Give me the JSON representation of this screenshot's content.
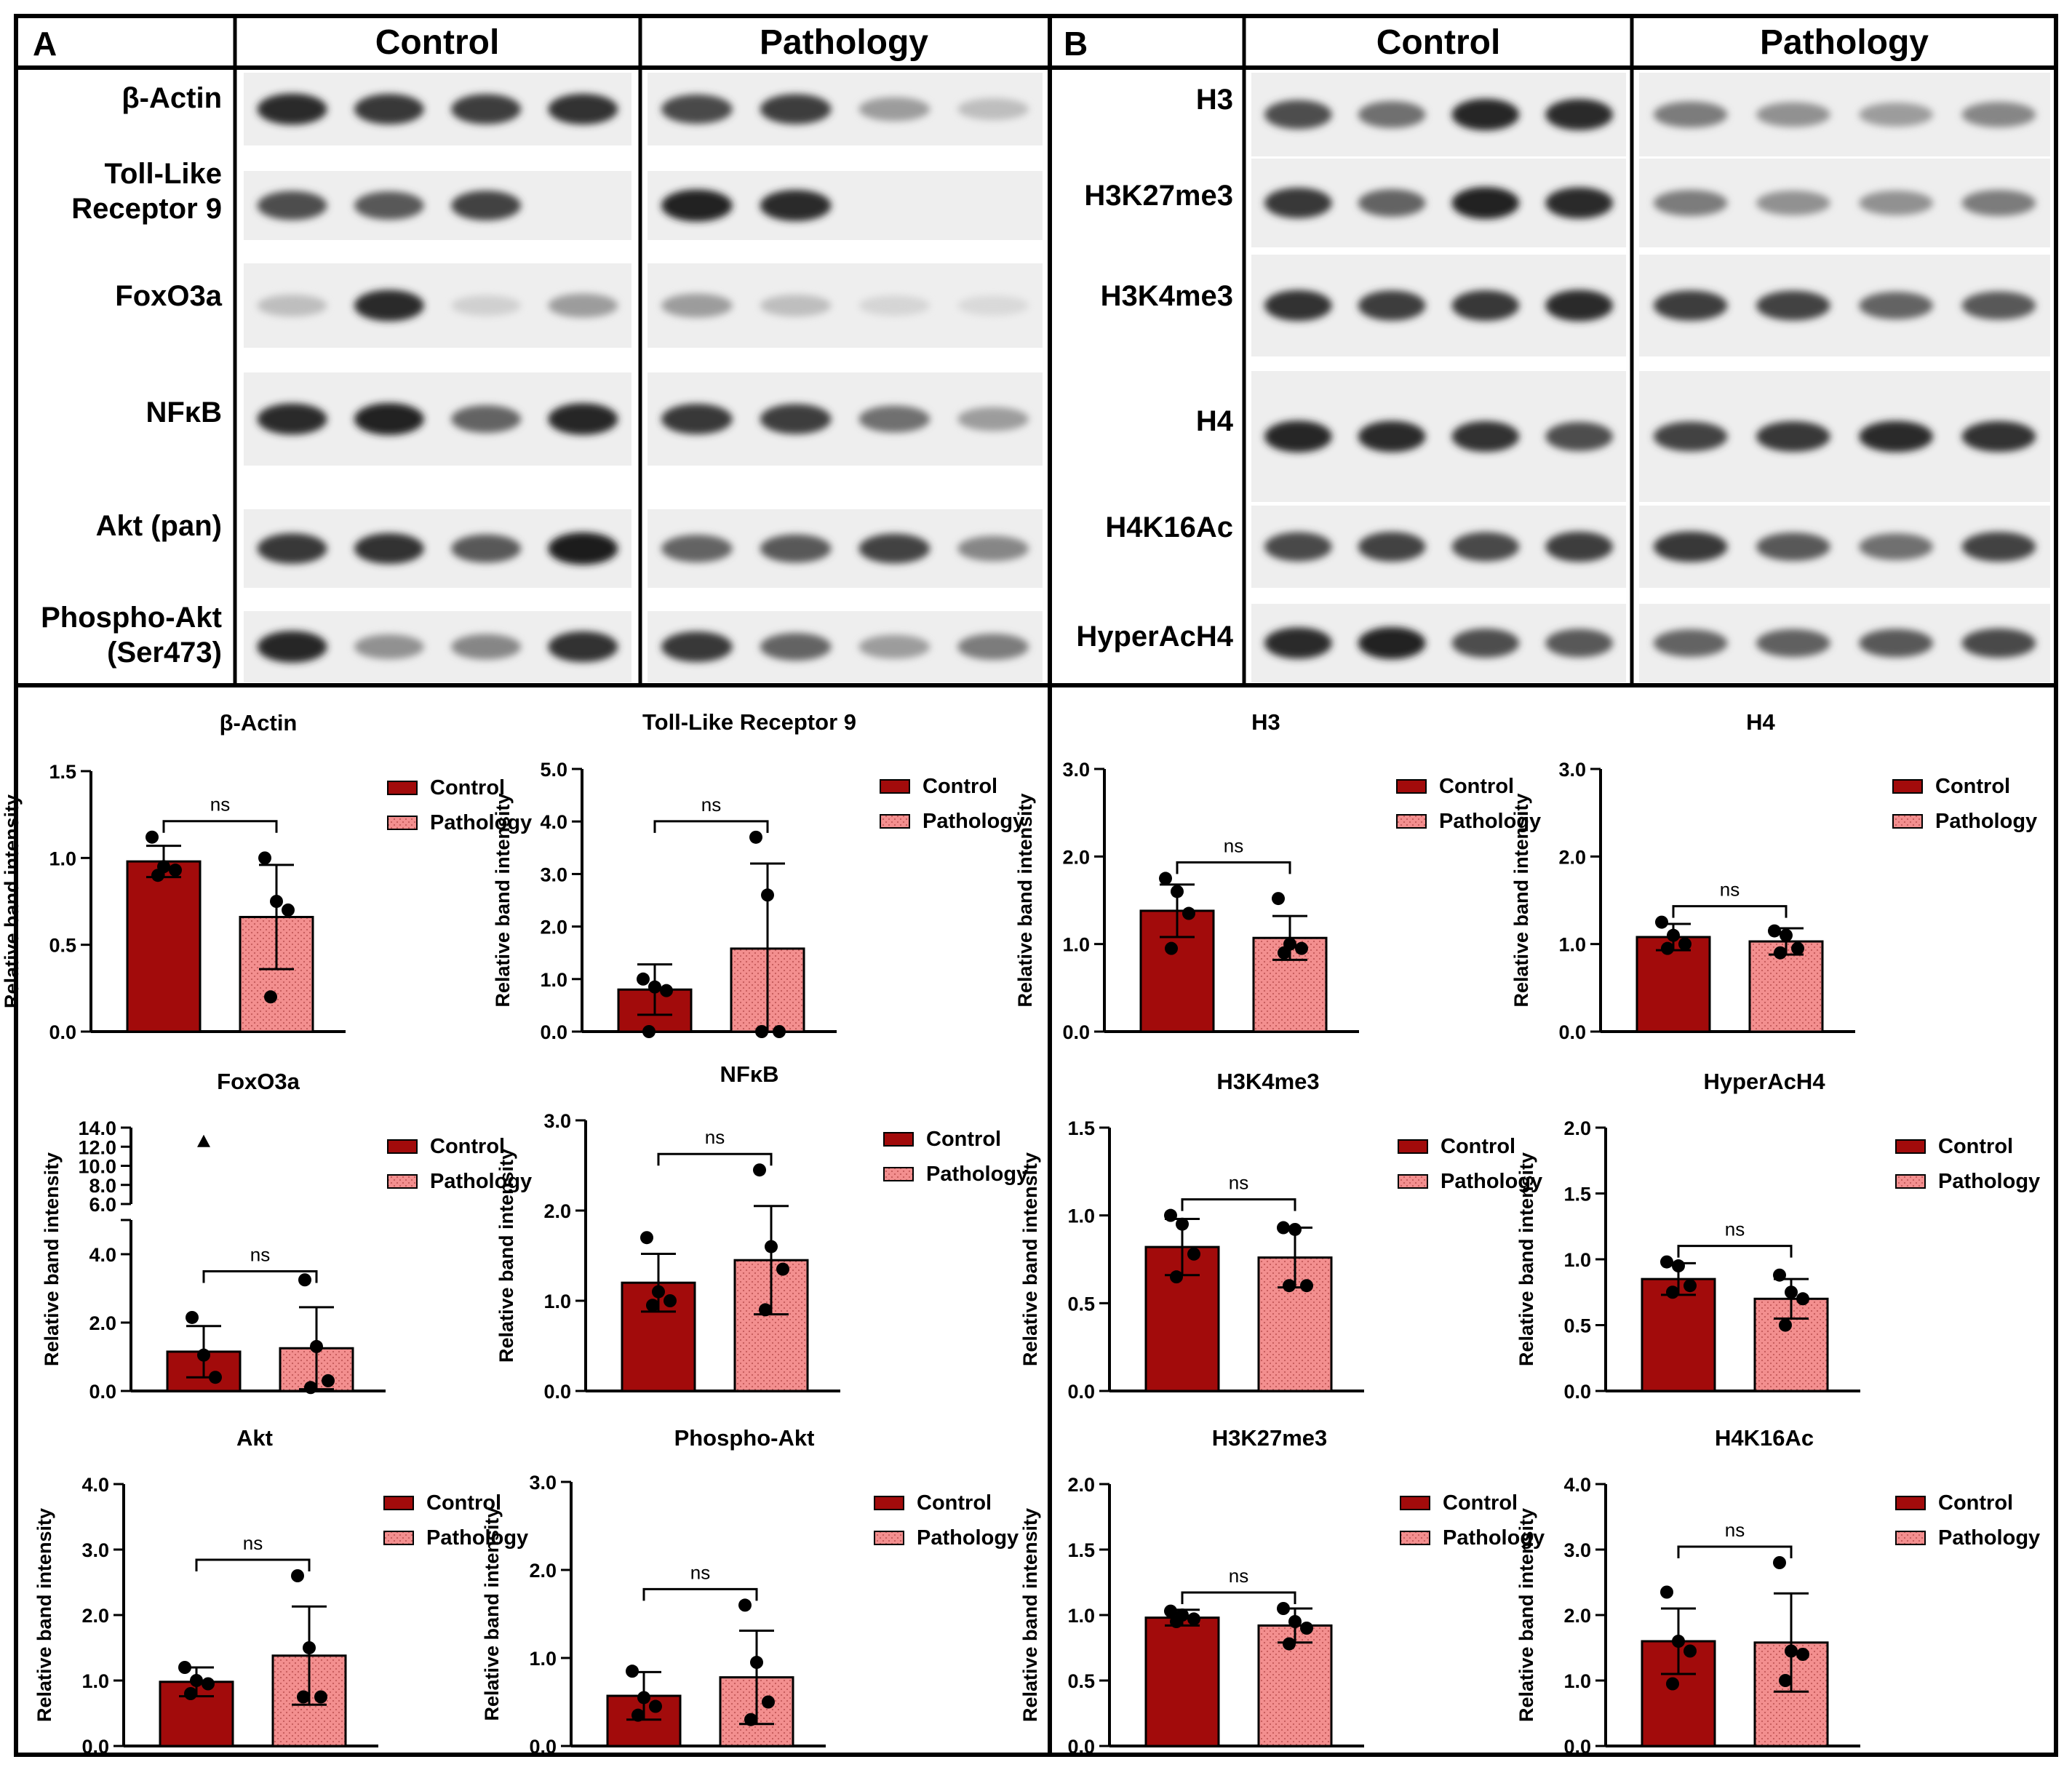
{
  "figure": {
    "panel_a": {
      "letter": "A",
      "col_control": "Control",
      "col_pathology": "Pathology",
      "blots": [
        {
          "label": [
            "β-Actin"
          ],
          "control_bands": [
            0.85,
            0.8,
            0.78,
            0.82
          ],
          "pathology_bands": [
            0.72,
            0.78,
            0.35,
            0.2
          ]
        },
        {
          "label": [
            "Toll-Like",
            "Receptor 9"
          ],
          "control_bands": [
            0.7,
            0.65,
            0.75,
            0
          ],
          "pathology_bands": [
            0.9,
            0.85,
            0,
            0
          ]
        },
        {
          "label": [
            "FoxO3a"
          ],
          "control_bands": [
            0.2,
            0.85,
            0.12,
            0.35
          ],
          "pathology_bands": [
            0.35,
            0.2,
            0.1,
            0.08
          ]
        },
        {
          "label": [
            "NFκB"
          ],
          "control_bands": [
            0.85,
            0.9,
            0.6,
            0.88
          ],
          "pathology_bands": [
            0.8,
            0.78,
            0.55,
            0.35
          ]
        },
        {
          "label": [
            "Akt (pan)"
          ],
          "control_bands": [
            0.8,
            0.82,
            0.65,
            0.92
          ],
          "pathology_bands": [
            0.6,
            0.65,
            0.75,
            0.45
          ]
        },
        {
          "label": [
            "Phospho-Akt",
            "(Ser473)"
          ],
          "control_bands": [
            0.88,
            0.4,
            0.45,
            0.82
          ],
          "pathology_bands": [
            0.8,
            0.6,
            0.35,
            0.5
          ]
        }
      ]
    },
    "panel_b": {
      "letter": "B",
      "col_control": "Control",
      "col_pathology": "Pathology",
      "blots": [
        {
          "label": [
            "H3"
          ],
          "control_bands": [
            0.7,
            0.55,
            0.88,
            0.85
          ],
          "pathology_bands": [
            0.5,
            0.4,
            0.35,
            0.45
          ]
        },
        {
          "label": [
            "H3K27me3"
          ],
          "control_bands": [
            0.8,
            0.6,
            0.9,
            0.85
          ],
          "pathology_bands": [
            0.5,
            0.4,
            0.4,
            0.5
          ]
        },
        {
          "label": [
            "H3K4me3"
          ],
          "control_bands": [
            0.82,
            0.78,
            0.8,
            0.85
          ],
          "pathology_bands": [
            0.78,
            0.75,
            0.6,
            0.65
          ]
        },
        {
          "label": [
            "H4"
          ],
          "control_bands": [
            0.88,
            0.85,
            0.82,
            0.7
          ],
          "pathology_bands": [
            0.75,
            0.8,
            0.85,
            0.82
          ]
        },
        {
          "label": [
            "H4K16Ac"
          ],
          "control_bands": [
            0.72,
            0.75,
            0.72,
            0.78
          ],
          "pathology_bands": [
            0.8,
            0.65,
            0.55,
            0.75
          ]
        },
        {
          "label": [
            "HyperAcH4"
          ],
          "control_bands": [
            0.85,
            0.9,
            0.7,
            0.65
          ],
          "pathology_bands": [
            0.6,
            0.62,
            0.65,
            0.72
          ]
        }
      ]
    }
  },
  "chart_data": [
    {
      "type": "bar",
      "title": "β-Actin",
      "ylabel": "Relative band intensity",
      "ylim": [
        0,
        1.5
      ],
      "yticks": [
        "0.0",
        "0.5",
        "1.0",
        "1.5"
      ],
      "tick_values": [
        0,
        0.5,
        1.0,
        1.5
      ],
      "categories": [
        "Control",
        "Pathology"
      ],
      "series": [
        {
          "name": "Control",
          "mean": 0.98,
          "sd": 0.09,
          "points": [
            1.12,
            0.95,
            0.93,
            0.9
          ]
        },
        {
          "name": "Pathology",
          "mean": 0.66,
          "sd": 0.3,
          "points": [
            1.0,
            0.75,
            0.7,
            0.2
          ]
        }
      ],
      "significance": "ns",
      "legend": [
        "Control",
        "Pathology"
      ],
      "legend_position": "top-right"
    },
    {
      "type": "bar",
      "title": "Toll-Like Receptor 9",
      "ylabel": "Relative band intensity",
      "ylim": [
        0,
        5.0
      ],
      "yticks": [
        "0.0",
        "1.0",
        "2.0",
        "3.0",
        "4.0",
        "5.0"
      ],
      "tick_values": [
        0,
        1,
        2,
        3,
        4,
        5
      ],
      "categories": [
        "Control",
        "Pathology"
      ],
      "series": [
        {
          "name": "Control",
          "mean": 0.8,
          "sd": 0.48,
          "points": [
            1.0,
            0.85,
            0.78,
            0.0
          ]
        },
        {
          "name": "Pathology",
          "mean": 1.58,
          "sd": 1.62,
          "points": [
            3.7,
            2.6,
            0.0,
            0.0
          ]
        }
      ],
      "significance": "ns",
      "legend": [
        "Control",
        "Pathology"
      ],
      "legend_position": "top-right"
    },
    {
      "type": "bar",
      "title": "FoxO3a",
      "ylabel": "Relative band intensity",
      "ylim": [
        0,
        14.0
      ],
      "y_axis_break": [
        5,
        6
      ],
      "yticks": [
        "0.0",
        "2.0",
        "4.0",
        "6.0",
        "8.0",
        "10.0",
        "12.0",
        "14.0"
      ],
      "tick_values": [
        0,
        2,
        4,
        6,
        8,
        10,
        12,
        14
      ],
      "categories": [
        "Control",
        "Pathology"
      ],
      "series": [
        {
          "name": "Control",
          "mean": 1.15,
          "sd": 0.75,
          "points": [
            2.15,
            1.05,
            0.4
          ]
        },
        {
          "name": "Pathology",
          "mean": 1.25,
          "sd": 1.2,
          "points": [
            3.25,
            1.3,
            0.3,
            0.1
          ]
        }
      ],
      "outlier": {
        "series": "Control",
        "value": 12.5,
        "marker": "triangle"
      },
      "significance": "ns",
      "legend": [
        "Control",
        "Pathology"
      ],
      "legend_position": "top-right"
    },
    {
      "type": "bar",
      "title": "NFκB",
      "ylabel": "Relative band intensity",
      "ylim": [
        0,
        3.0
      ],
      "yticks": [
        "0.0",
        "1.0",
        "2.0",
        "3.0"
      ],
      "tick_values": [
        0,
        1,
        2,
        3
      ],
      "categories": [
        "Control",
        "Pathology"
      ],
      "series": [
        {
          "name": "Control",
          "mean": 1.2,
          "sd": 0.32,
          "points": [
            1.7,
            1.1,
            1.0,
            0.95
          ]
        },
        {
          "name": "Pathology",
          "mean": 1.45,
          "sd": 0.6,
          "points": [
            2.45,
            1.6,
            1.35,
            0.9
          ]
        }
      ],
      "significance": "ns",
      "legend": [
        "Control",
        "Pathology"
      ],
      "legend_position": "top-right"
    },
    {
      "type": "bar",
      "title": "Akt",
      "ylabel": "Relative band intensity",
      "ylim": [
        0,
        4.0
      ],
      "yticks": [
        "0.0",
        "1.0",
        "2.0",
        "3.0",
        "4.0"
      ],
      "tick_values": [
        0,
        1,
        2,
        3,
        4
      ],
      "categories": [
        "Control",
        "Pathology"
      ],
      "series": [
        {
          "name": "Control",
          "mean": 0.98,
          "sd": 0.22,
          "points": [
            1.2,
            1.0,
            0.95,
            0.8
          ]
        },
        {
          "name": "Pathology",
          "mean": 1.38,
          "sd": 0.75,
          "points": [
            2.6,
            1.5,
            0.75,
            0.75
          ]
        }
      ],
      "significance": "ns",
      "legend": [
        "Control",
        "Pathology"
      ],
      "legend_position": "top-right"
    },
    {
      "type": "bar",
      "title": "Phospho-Akt",
      "ylabel": "Relative band intensity",
      "ylim": [
        0,
        3.0
      ],
      "yticks": [
        "0.0",
        "1.0",
        "2.0",
        "3.0"
      ],
      "tick_values": [
        0,
        1,
        2,
        3
      ],
      "categories": [
        "Control",
        "Pathology"
      ],
      "series": [
        {
          "name": "Control",
          "mean": 0.57,
          "sd": 0.27,
          "points": [
            0.85,
            0.55,
            0.45,
            0.35
          ]
        },
        {
          "name": "Pathology",
          "mean": 0.78,
          "sd": 0.53,
          "points": [
            1.6,
            0.95,
            0.5,
            0.3
          ]
        }
      ],
      "significance": "ns",
      "legend": [
        "Control",
        "Pathology"
      ],
      "legend_position": "top-right"
    },
    {
      "type": "bar",
      "title": "H3",
      "ylabel": "Relative band intensity",
      "ylim": [
        0,
        3.0
      ],
      "yticks": [
        "0.0",
        "1.0",
        "2.0",
        "3.0"
      ],
      "tick_values": [
        0,
        1,
        2,
        3
      ],
      "categories": [
        "Control",
        "Pathology"
      ],
      "series": [
        {
          "name": "Control",
          "mean": 1.38,
          "sd": 0.3,
          "points": [
            1.75,
            1.6,
            1.35,
            0.95
          ]
        },
        {
          "name": "Pathology",
          "mean": 1.07,
          "sd": 0.25,
          "points": [
            1.52,
            1.0,
            0.95,
            0.9
          ]
        }
      ],
      "significance": "ns",
      "legend": [
        "Control",
        "Pathology"
      ],
      "legend_position": "top-right"
    },
    {
      "type": "bar",
      "title": "H4",
      "ylabel": "Relative band intensity",
      "ylim": [
        0,
        3.0
      ],
      "yticks": [
        "0.0",
        "1.0",
        "2.0",
        "3.0"
      ],
      "tick_values": [
        0,
        1,
        2,
        3
      ],
      "categories": [
        "Control",
        "Pathology"
      ],
      "series": [
        {
          "name": "Control",
          "mean": 1.08,
          "sd": 0.15,
          "points": [
            1.25,
            1.1,
            1.0,
            0.95
          ]
        },
        {
          "name": "Pathology",
          "mean": 1.03,
          "sd": 0.15,
          "points": [
            1.15,
            1.1,
            0.95,
            0.9
          ]
        }
      ],
      "significance": "ns",
      "legend": [
        "Control",
        "Pathology"
      ],
      "legend_position": "top-right"
    },
    {
      "type": "bar",
      "title": "H3K4me3",
      "ylabel": "Relative band intensity",
      "ylim": [
        0,
        1.5
      ],
      "yticks": [
        "0.0",
        "0.5",
        "1.0",
        "1.5"
      ],
      "tick_values": [
        0,
        0.5,
        1.0,
        1.5
      ],
      "categories": [
        "Control",
        "Pathology"
      ],
      "series": [
        {
          "name": "Control",
          "mean": 0.82,
          "sd": 0.16,
          "points": [
            1.0,
            0.95,
            0.78,
            0.65
          ]
        },
        {
          "name": "Pathology",
          "mean": 0.76,
          "sd": 0.17,
          "points": [
            0.93,
            0.92,
            0.6,
            0.6
          ]
        }
      ],
      "significance": "ns",
      "legend": [
        "Control",
        "Pathology"
      ],
      "legend_position": "top-right"
    },
    {
      "type": "bar",
      "title": "HyperAcH4",
      "ylabel": "Relative band intensity",
      "ylim": [
        0,
        2.0
      ],
      "yticks": [
        "0.0",
        "0.5",
        "1.0",
        "1.5",
        "2.0"
      ],
      "tick_values": [
        0,
        0.5,
        1.0,
        1.5,
        2.0
      ],
      "categories": [
        "Control",
        "Pathology"
      ],
      "series": [
        {
          "name": "Control",
          "mean": 0.85,
          "sd": 0.12,
          "points": [
            0.98,
            0.95,
            0.8,
            0.75
          ]
        },
        {
          "name": "Pathology",
          "mean": 0.7,
          "sd": 0.15,
          "points": [
            0.88,
            0.75,
            0.7,
            0.5
          ]
        }
      ],
      "significance": "ns",
      "legend": [
        "Control",
        "Pathology"
      ],
      "legend_position": "top-right"
    },
    {
      "type": "bar",
      "title": "H3K27me3",
      "ylabel": "Relative band intensity",
      "ylim": [
        0,
        2.0
      ],
      "yticks": [
        "0.0",
        "0.5",
        "1.0",
        "1.5",
        "2.0"
      ],
      "tick_values": [
        0,
        0.5,
        1.0,
        1.5,
        2.0
      ],
      "categories": [
        "Control",
        "Pathology"
      ],
      "series": [
        {
          "name": "Control",
          "mean": 0.98,
          "sd": 0.06,
          "points": [
            1.03,
            1.0,
            0.97,
            0.95
          ]
        },
        {
          "name": "Pathology",
          "mean": 0.92,
          "sd": 0.13,
          "points": [
            1.05,
            0.95,
            0.9,
            0.78
          ]
        }
      ],
      "significance": "ns",
      "legend": [
        "Control",
        "Pathology"
      ],
      "legend_position": "top-right"
    },
    {
      "type": "bar",
      "title": "H4K16Ac",
      "ylabel": "Relative band intensity",
      "ylim": [
        0,
        4.0
      ],
      "yticks": [
        "0.0",
        "1.0",
        "2.0",
        "3.0",
        "4.0"
      ],
      "tick_values": [
        0,
        1,
        2,
        3,
        4
      ],
      "categories": [
        "Control",
        "Pathology"
      ],
      "series": [
        {
          "name": "Control",
          "mean": 1.6,
          "sd": 0.5,
          "points": [
            2.35,
            1.6,
            1.45,
            0.95
          ]
        },
        {
          "name": "Pathology",
          "mean": 1.58,
          "sd": 0.75,
          "points": [
            2.8,
            1.45,
            1.4,
            1.0
          ]
        }
      ],
      "significance": "ns",
      "legend": [
        "Control",
        "Pathology"
      ],
      "legend_position": "top-right"
    }
  ]
}
